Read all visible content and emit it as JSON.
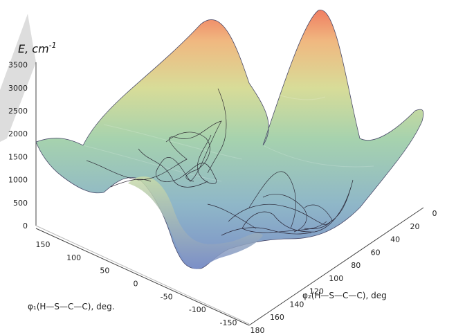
{
  "chart_data": {
    "type": "surface3d",
    "z_axis": {
      "label_var": "E",
      "label_unit": "cm",
      "label_exp": "-1",
      "ticks": [
        "0",
        "500",
        "1000",
        "1500",
        "2000",
        "2500",
        "3000",
        "3500"
      ],
      "range": [
        0,
        3700
      ]
    },
    "x_axis": {
      "label": "φ₁(H—S—C—C), deg.",
      "ticks": [
        "150",
        "100",
        "50",
        "0",
        "-50",
        "-100",
        "-150"
      ],
      "range": [
        180,
        -180
      ]
    },
    "y_axis": {
      "label": "φ₂(H—S—C—C), deg",
      "ticks": [
        "0",
        "20",
        "40",
        "60",
        "80",
        "100",
        "120",
        "140",
        "160",
        "180"
      ],
      "range": [
        0,
        180
      ]
    },
    "surface_samples": [
      {
        "phi1": 180,
        "phi2": 180,
        "E": 1850
      },
      {
        "phi1": 90,
        "phi2": 140,
        "E": 1000
      },
      {
        "phi1": 20,
        "phi2": 130,
        "E": 3400
      },
      {
        "phi1": -60,
        "phi2": 120,
        "E": 1050
      },
      {
        "phi1": -30,
        "phi2": 70,
        "E": 3700
      },
      {
        "phi1": 60,
        "phi2": 60,
        "E": 1100
      },
      {
        "phi1": 0,
        "phi2": 40,
        "E": 450
      },
      {
        "phi1": -180,
        "phi2": 0,
        "E": 2000
      }
    ],
    "colormap": [
      "#7b8fc8",
      "#8fb7c8",
      "#a6d2ae",
      "#d8dc98",
      "#f0b880",
      "#f07e62"
    ],
    "trajectory_color": "#1a1020"
  }
}
